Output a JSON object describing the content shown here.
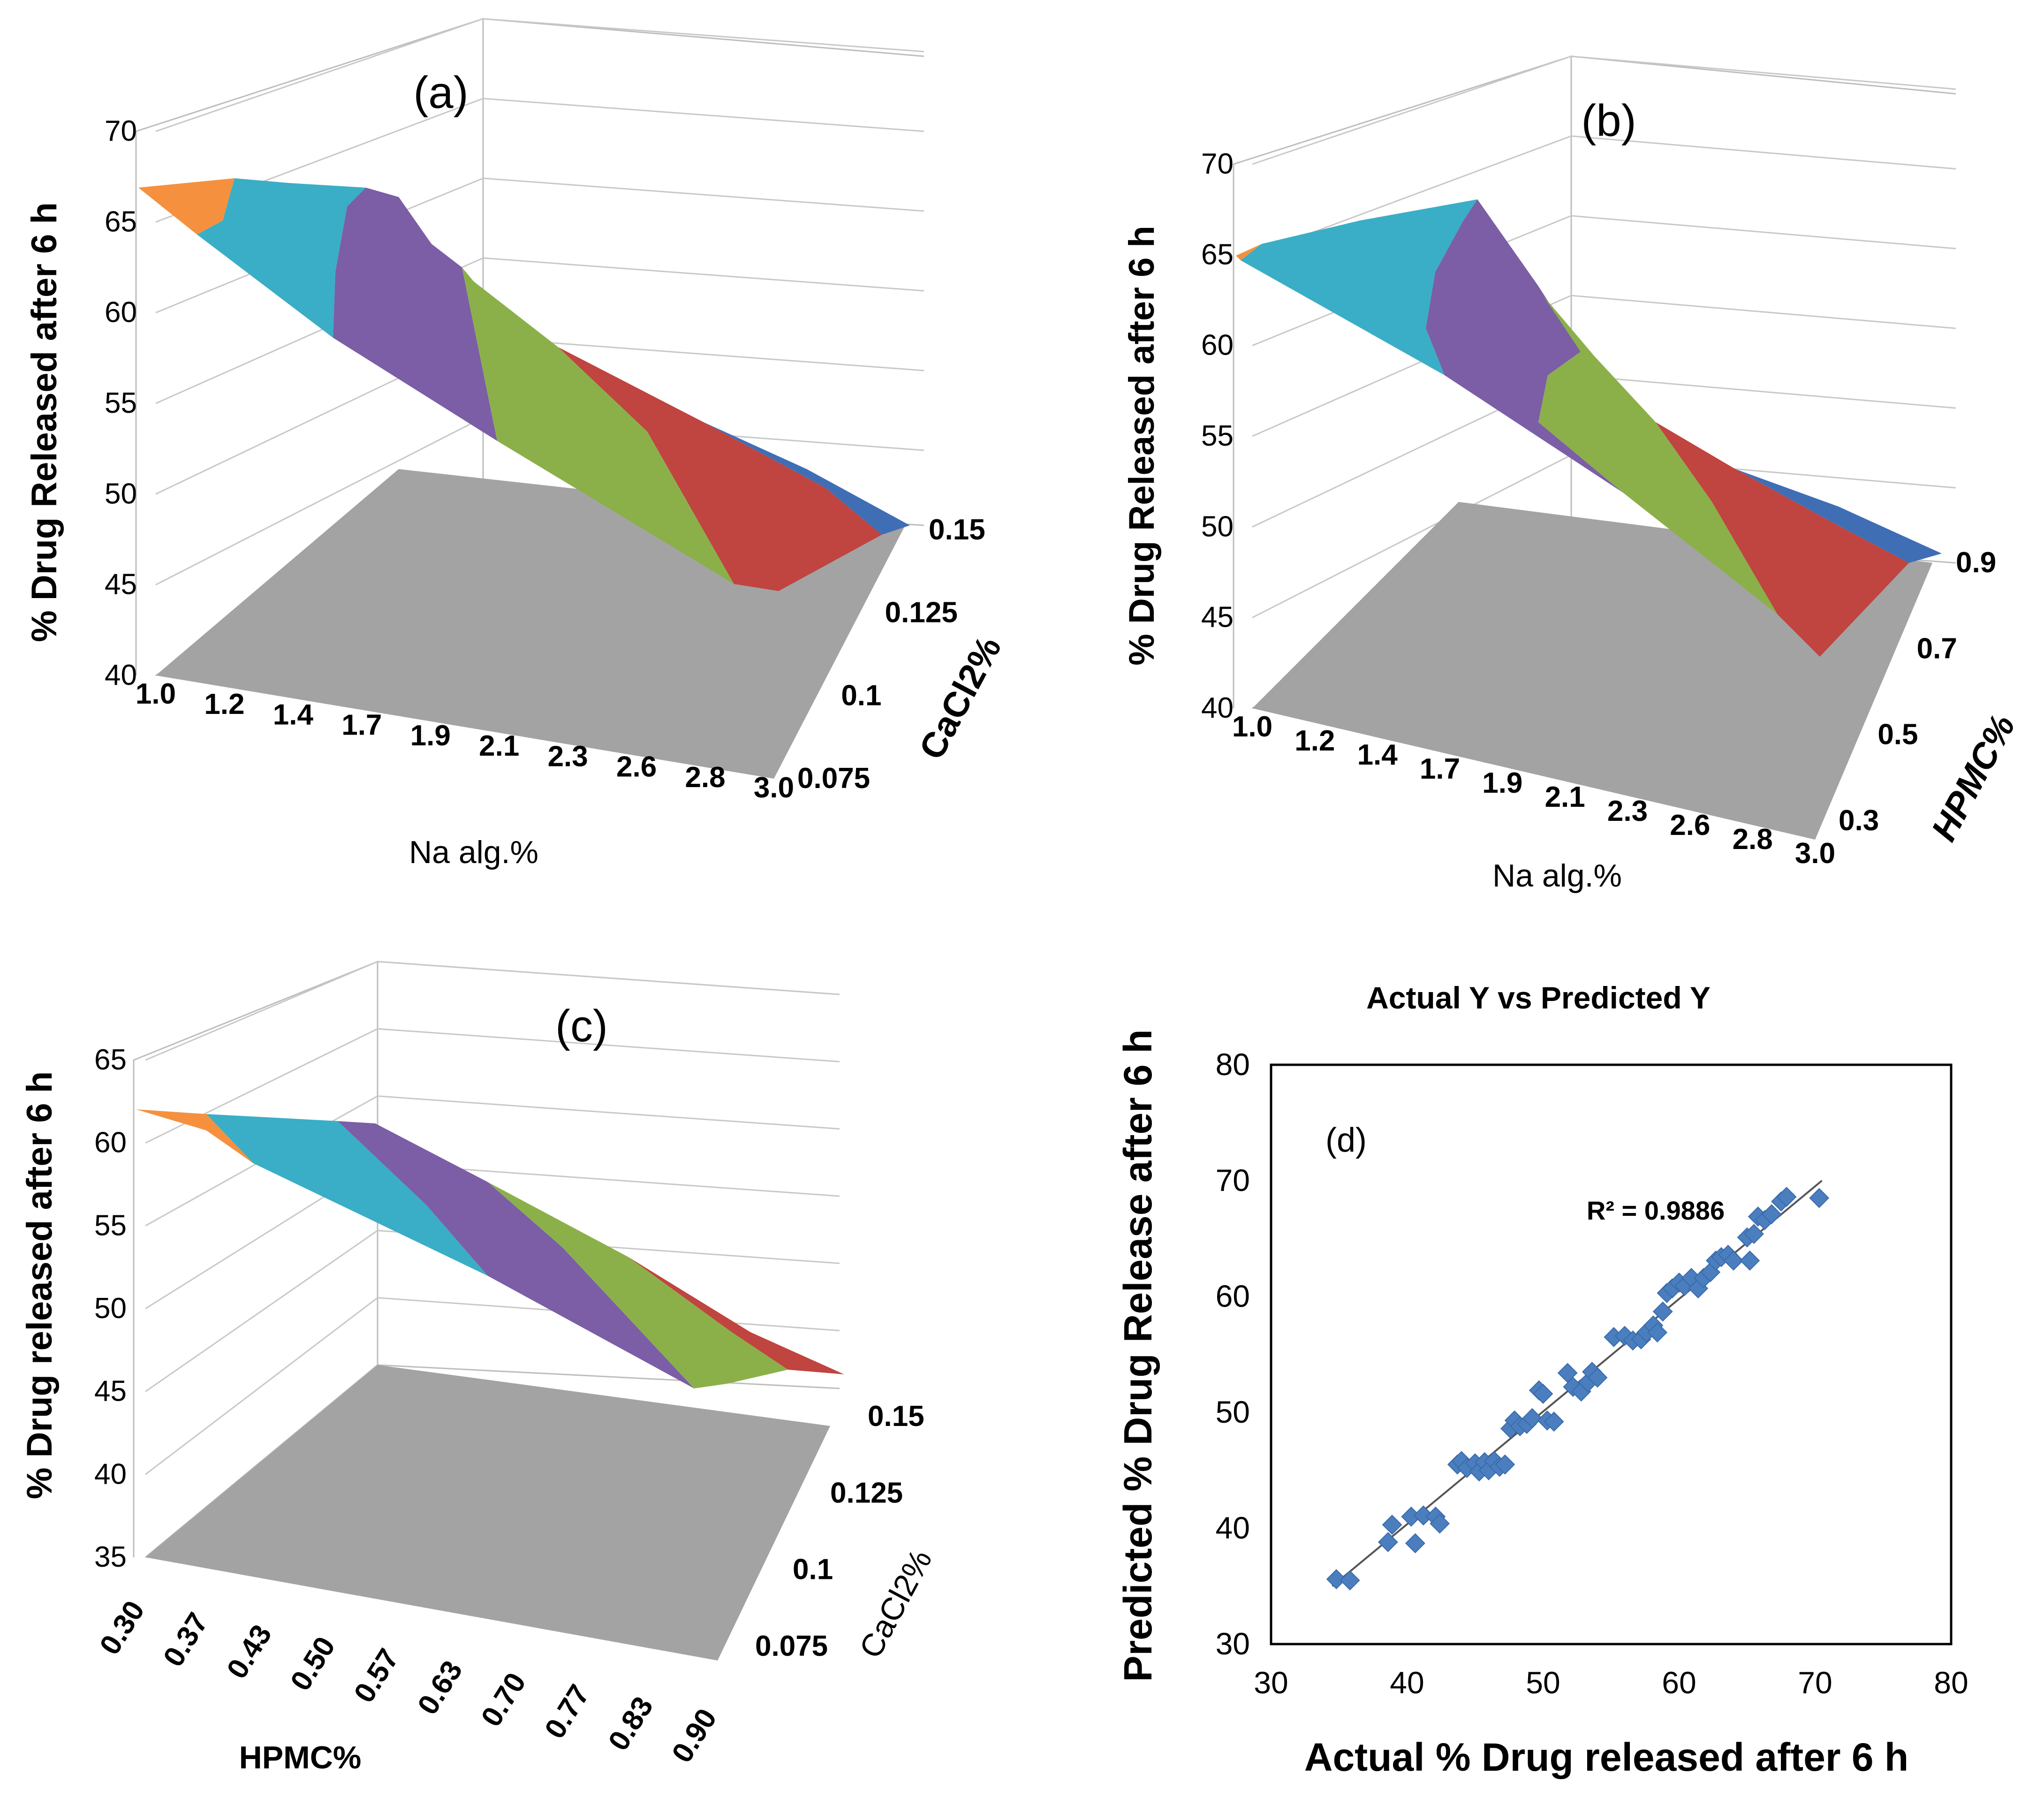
{
  "chart_data": [
    {
      "id": "a",
      "type": "surface3d",
      "panel_label": "(a)",
      "zlabel": "% Drug Released after 6 h",
      "xlabel": "Na alg.%",
      "ylabel": "CaCl2%",
      "z_ticks": [
        "40",
        "45",
        "50",
        "55",
        "60",
        "65",
        "70"
      ],
      "zlim": [
        40,
        70
      ],
      "x_ticks": [
        "1.0",
        "1.2",
        "1.4",
        "1.7",
        "1.9",
        "2.1",
        "2.3",
        "2.6",
        "2.8",
        "3.0"
      ],
      "y_ticks": [
        "0.075",
        "0.1",
        "0.125",
        "0.15"
      ],
      "bands": [
        {
          "range": "65-70",
          "color": "#f5913e"
        },
        {
          "range": "60-65",
          "color": "#3aaec6"
        },
        {
          "range": "55-60",
          "color": "#7b5ea6"
        },
        {
          "range": "50-55",
          "color": "#8bb04a"
        },
        {
          "range": "45-50",
          "color": "#c0443f"
        },
        {
          "range": "40-45",
          "color": "#3f6eb5"
        }
      ],
      "floor_color": "#a3a3a3"
    },
    {
      "id": "b",
      "type": "surface3d",
      "panel_label": "(b)",
      "zlabel": "% Drug Released after 6 h",
      "xlabel": "Na alg.%",
      "ylabel": "HPMC%",
      "z_ticks": [
        "40",
        "45",
        "50",
        "55",
        "60",
        "65",
        "70"
      ],
      "zlim": [
        40,
        70
      ],
      "x_ticks": [
        "1.0",
        "1.2",
        "1.4",
        "1.7",
        "1.9",
        "2.1",
        "2.3",
        "2.6",
        "2.8",
        "3.0"
      ],
      "y_ticks": [
        "0.3",
        "0.5",
        "0.7",
        "0.9"
      ],
      "bands": [
        {
          "range": "65-70",
          "color": "#f5913e"
        },
        {
          "range": "60-65",
          "color": "#3aaec6"
        },
        {
          "range": "55-60",
          "color": "#7b5ea6"
        },
        {
          "range": "50-55",
          "color": "#8bb04a"
        },
        {
          "range": "45-50",
          "color": "#c0443f"
        },
        {
          "range": "40-45",
          "color": "#3f6eb5"
        }
      ],
      "floor_color": "#a3a3a3"
    },
    {
      "id": "c",
      "type": "surface3d",
      "panel_label": "(c)",
      "zlabel": "% Drug released after 6 h",
      "xlabel": "HPMC%",
      "ylabel": "CaCl2%",
      "z_ticks": [
        "35",
        "40",
        "45",
        "50",
        "55",
        "60",
        "65"
      ],
      "zlim": [
        35,
        65
      ],
      "x_ticks": [
        "0.30",
        "0.37",
        "0.43",
        "0.50",
        "0.57",
        "0.63",
        "0.70",
        "0.77",
        "0.83",
        "0.90"
      ],
      "y_ticks": [
        "0.075",
        "0.1",
        "0.125",
        "0.15"
      ],
      "bands": [
        {
          "range": "60-65",
          "color": "#f5913e"
        },
        {
          "range": "55-60",
          "color": "#3aaec6"
        },
        {
          "range": "50-55",
          "color": "#7b5ea6"
        },
        {
          "range": "45-50",
          "color": "#8bb04a"
        },
        {
          "range": "40-45",
          "color": "#c0443f"
        }
      ],
      "floor_color": "#a3a3a3"
    },
    {
      "id": "d",
      "type": "scatter",
      "title": "Actual Y vs Predicted Y",
      "panel_label": "(d)",
      "xlabel": "Actual % Drug released after 6 h",
      "ylabel": "Predicted  % Drug Release after 6 h",
      "xlim": [
        30,
        80
      ],
      "ylim": [
        30,
        80
      ],
      "x_ticks": [
        "30",
        "40",
        "50",
        "60",
        "70",
        "80"
      ],
      "y_ticks": [
        "30",
        "40",
        "50",
        "60",
        "70",
        "80"
      ],
      "annotation": "R² = 0.9886",
      "marker_color": "#4a7ebf",
      "trendline": {
        "x": [
          34.5,
          70.5
        ],
        "y": [
          35.0,
          70.0
        ]
      },
      "points": [
        [
          34.8,
          35.6
        ],
        [
          35.8,
          35.5
        ],
        [
          38.6,
          38.8
        ],
        [
          38.9,
          40.3
        ],
        [
          40.3,
          41.0
        ],
        [
          40.6,
          38.7
        ],
        [
          41.2,
          41.1
        ],
        [
          42.1,
          41.0
        ],
        [
          42.4,
          40.4
        ],
        [
          43.7,
          45.5
        ],
        [
          44.0,
          45.8
        ],
        [
          44.4,
          45.2
        ],
        [
          45.0,
          45.6
        ],
        [
          45.3,
          44.9
        ],
        [
          45.7,
          45.7
        ],
        [
          46.0,
          45.0
        ],
        [
          46.4,
          45.8
        ],
        [
          46.8,
          45.3
        ],
        [
          47.2,
          45.5
        ],
        [
          47.6,
          48.6
        ],
        [
          47.9,
          49.3
        ],
        [
          48.3,
          48.8
        ],
        [
          48.8,
          49.0
        ],
        [
          49.2,
          49.5
        ],
        [
          49.7,
          51.9
        ],
        [
          50.0,
          51.6
        ],
        [
          50.3,
          49.3
        ],
        [
          50.8,
          49.2
        ],
        [
          51.8,
          53.4
        ],
        [
          52.2,
          52.2
        ],
        [
          52.8,
          51.8
        ],
        [
          53.3,
          52.6
        ],
        [
          53.6,
          53.5
        ],
        [
          54.0,
          53.0
        ],
        [
          55.2,
          56.5
        ],
        [
          56.0,
          56.6
        ],
        [
          56.6,
          56.2
        ],
        [
          57.2,
          56.3
        ],
        [
          57.6,
          56.9
        ],
        [
          58.1,
          57.5
        ],
        [
          58.4,
          56.9
        ],
        [
          58.8,
          58.7
        ],
        [
          59.1,
          60.3
        ],
        [
          59.5,
          60.7
        ],
        [
          60.0,
          61.2
        ],
        [
          60.4,
          60.9
        ],
        [
          60.9,
          61.6
        ],
        [
          61.4,
          60.7
        ],
        [
          61.8,
          61.6
        ],
        [
          62.3,
          62.1
        ],
        [
          62.7,
          63.1
        ],
        [
          63.1,
          63.4
        ],
        [
          63.6,
          63.6
        ],
        [
          64.0,
          63.1
        ],
        [
          65.2,
          63.1
        ],
        [
          65.0,
          65.1
        ],
        [
          65.5,
          65.4
        ],
        [
          65.8,
          66.9
        ],
        [
          66.3,
          66.6
        ],
        [
          66.8,
          67.1
        ],
        [
          67.5,
          68.2
        ],
        [
          67.9,
          68.6
        ],
        [
          70.3,
          68.5
        ]
      ]
    }
  ]
}
